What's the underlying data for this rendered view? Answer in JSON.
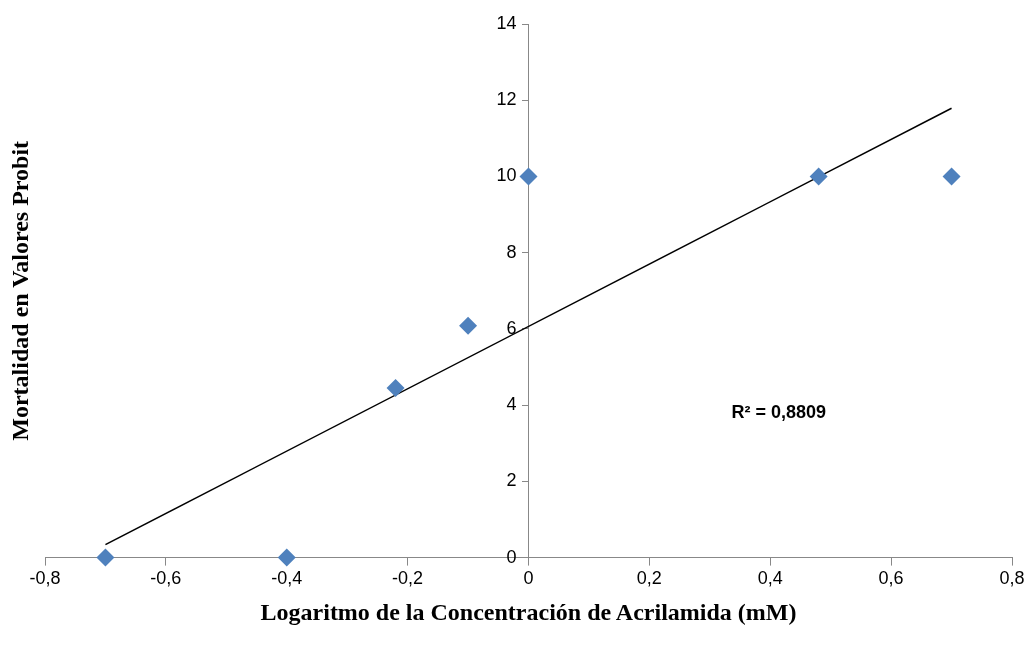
{
  "chart_data": {
    "type": "scatter",
    "xlabel": "Logaritmo de la Concentración de Acrilamida (mM)",
    "ylabel": "Mortalidad en Valores Probit",
    "annotations": [
      "R² = 0,8809"
    ],
    "series": [
      {
        "color": "#4f81bd",
        "marker": "diamond",
        "x": [
          -0.7,
          -0.4,
          -0.22,
          -0.1,
          0,
          0.48,
          0.7
        ],
        "values": [
          0,
          0,
          4.45,
          6.08,
          10,
          10,
          10
        ]
      },
      {
        "type": "line",
        "color": "#000000",
        "marker": "none",
        "x": [
          -0.7,
          0.7
        ],
        "values": [
          0.34,
          11.79
        ]
      }
    ],
    "xlim": [
      -0.8,
      0.8
    ],
    "xticks": [
      {
        "value": -0.8,
        "label": "-0,8"
      },
      {
        "value": -0.6,
        "label": "-0,6"
      },
      {
        "value": -0.4,
        "label": "-0,4"
      },
      {
        "value": -0.2,
        "label": "-0,2"
      },
      0,
      {
        "value": 0.2,
        "label": "0,2"
      },
      {
        "value": 0.4,
        "label": "0,4"
      },
      {
        "value": 0.6,
        "label": "0,6"
      },
      {
        "value": 0.8,
        "label": "0,8"
      }
    ],
    "ylim": [
      0,
      14
    ],
    "yticks": [
      0,
      2,
      4,
      6,
      8,
      10,
      12,
      14
    ],
    "grid": false,
    "legend": false
  }
}
